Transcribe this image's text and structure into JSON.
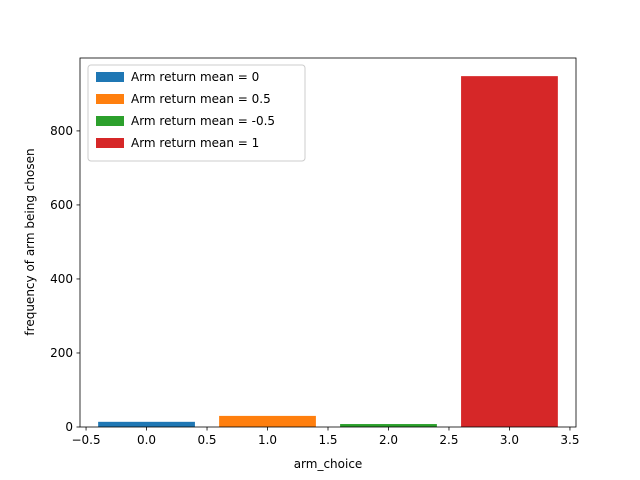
{
  "chart_data": {
    "type": "bar",
    "xlabel": "arm_choice",
    "ylabel": "frequency of arm being chosen",
    "xlim": [
      -0.55,
      3.55
    ],
    "ylim": [
      0,
      997
    ],
    "xticks": [
      -0.5,
      0.0,
      0.5,
      1.0,
      1.5,
      2.0,
      2.5,
      3.0,
      3.5
    ],
    "xtick_labels": [
      "−0.5",
      "0.0",
      "0.5",
      "1.0",
      "1.5",
      "2.0",
      "2.5",
      "3.0",
      "3.5"
    ],
    "yticks": [
      0,
      200,
      400,
      600,
      800
    ],
    "ytick_labels": [
      "0",
      "200",
      "400",
      "600",
      "800"
    ],
    "bar_width": 0.8,
    "legend_position": "top-left",
    "grid": false,
    "series": [
      {
        "name": "Arm return mean = 0",
        "x": 0,
        "value": 14,
        "color": "#1f77b4"
      },
      {
        "name": "Arm return mean = 0.5",
        "x": 1,
        "value": 30,
        "color": "#ff7f0e"
      },
      {
        "name": "Arm return mean = -0.5",
        "x": 2,
        "value": 8,
        "color": "#2ca02c"
      },
      {
        "name": "Arm return mean = 1",
        "x": 3,
        "value": 948,
        "color": "#d62728"
      }
    ]
  }
}
